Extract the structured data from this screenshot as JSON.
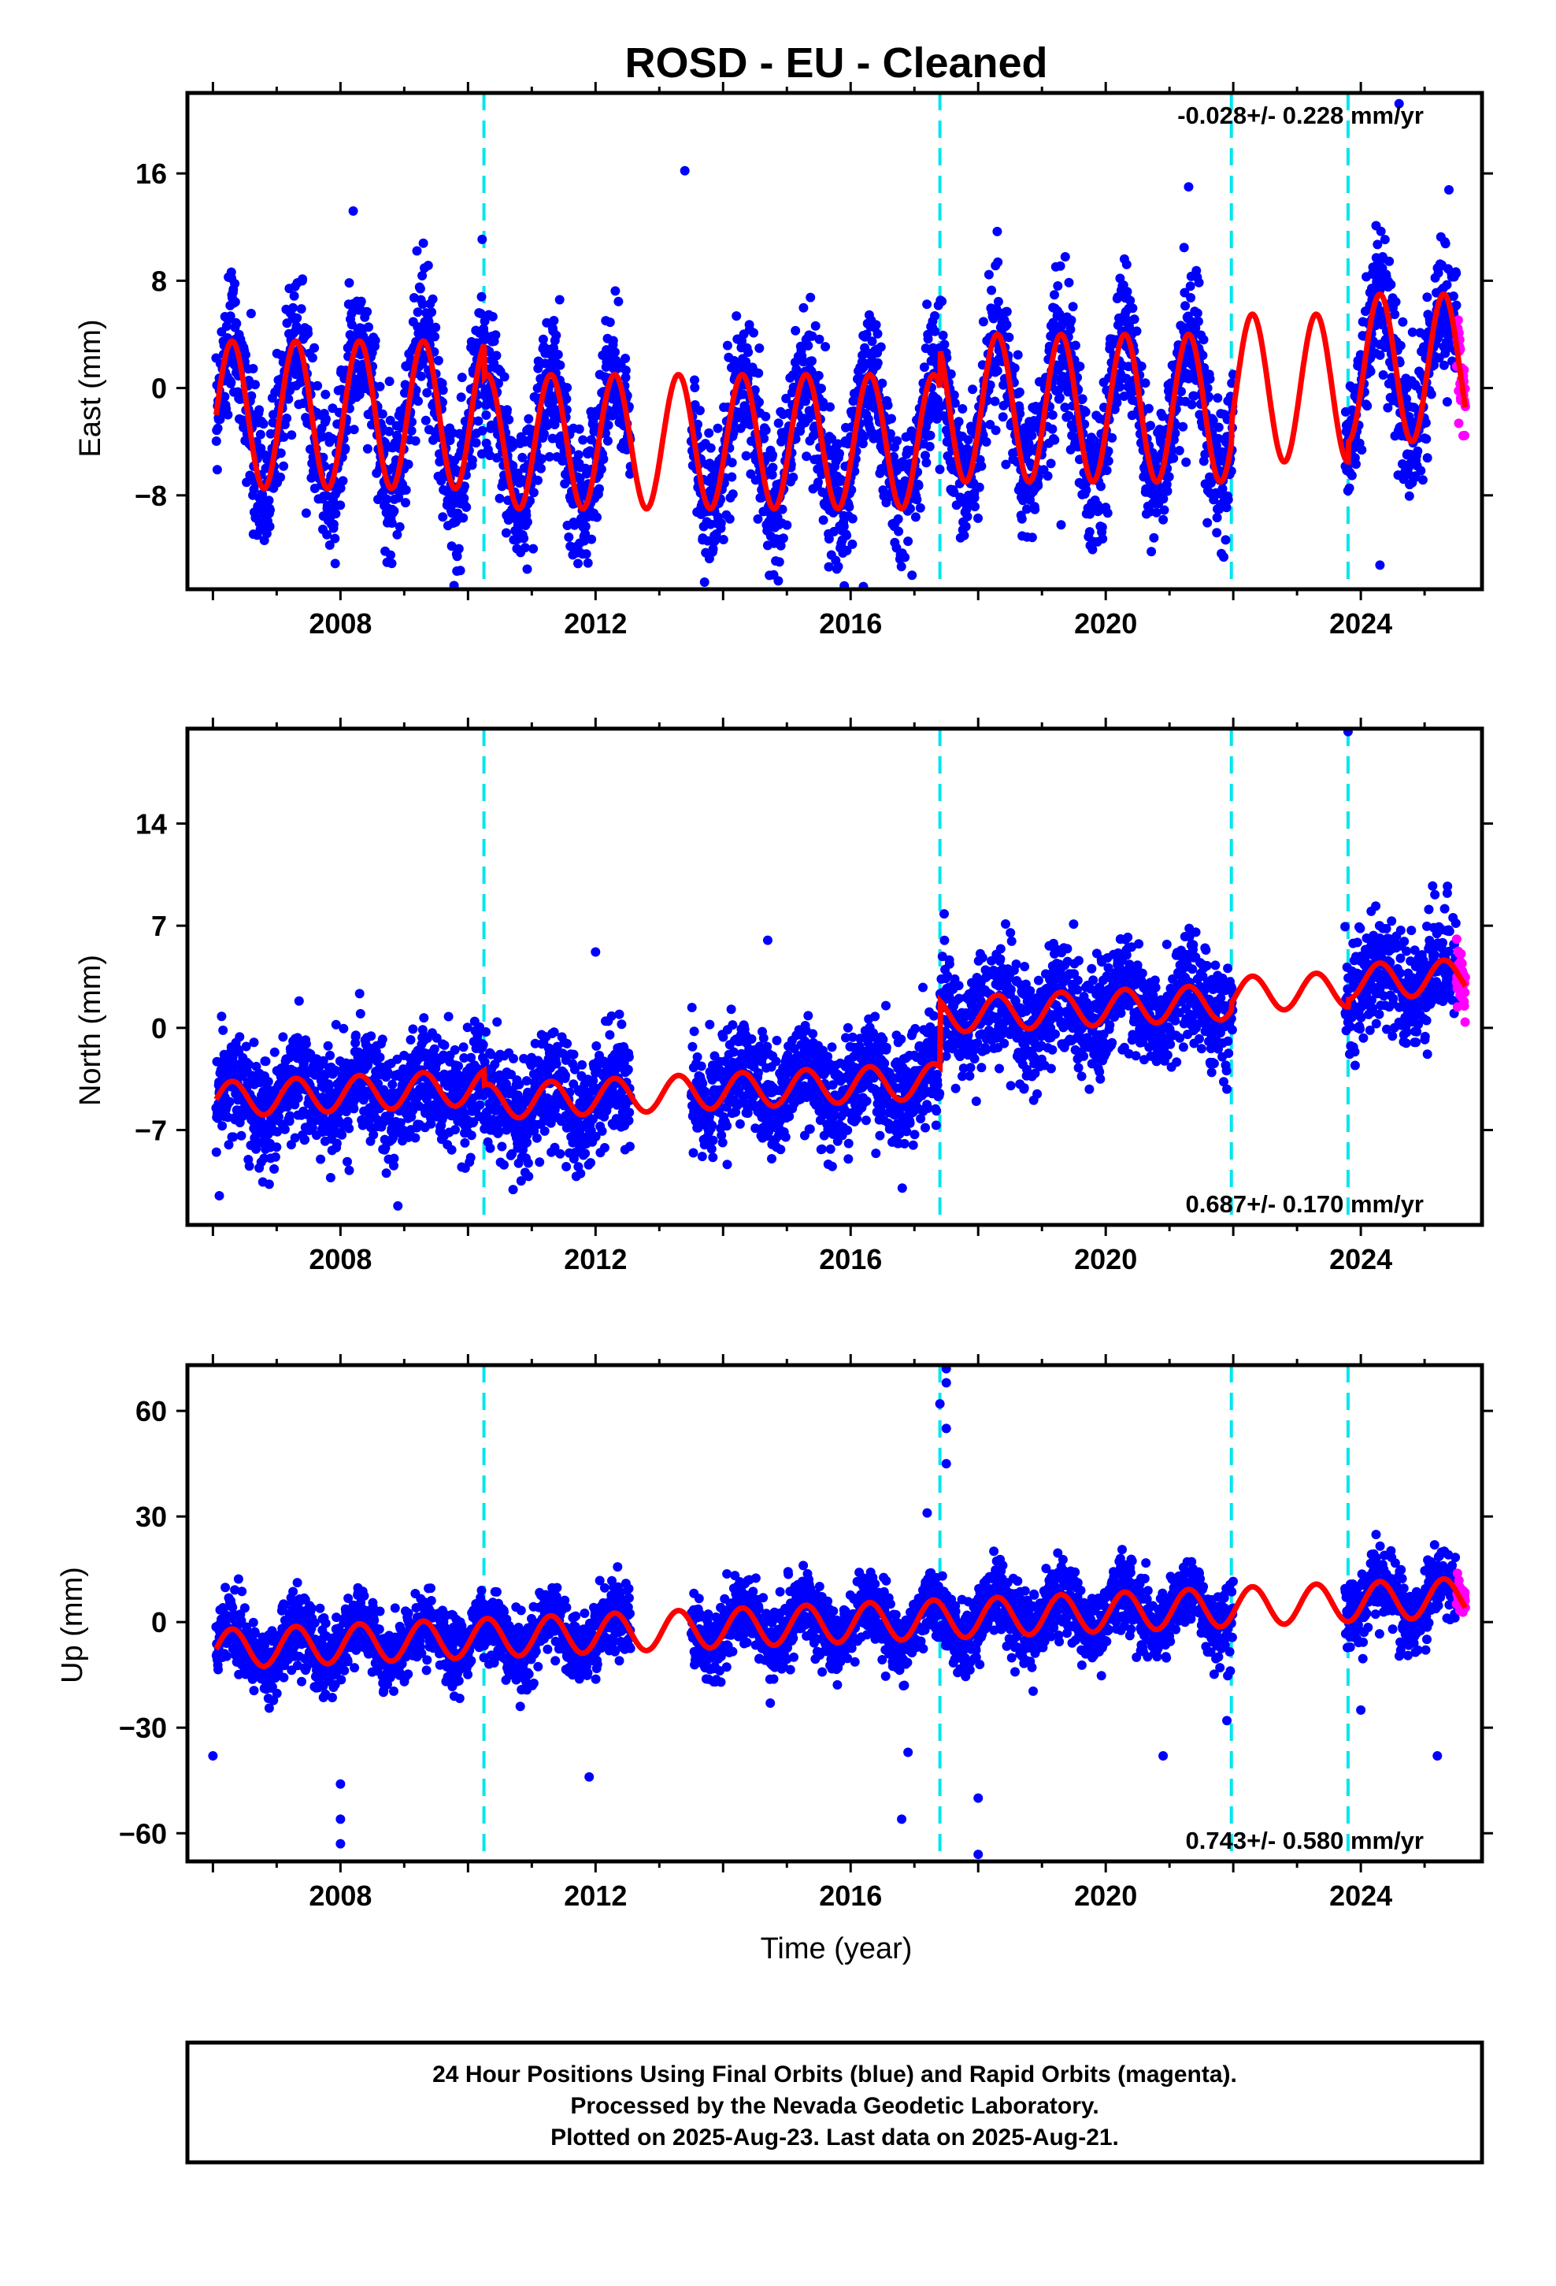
{
  "chart_data": {
    "type": "scatter",
    "title": "ROSD  - EU - Cleaned",
    "xlabel": "Time (year)",
    "xlim": [
      2005.6,
      2025.9
    ],
    "xticks": [
      2008,
      2012,
      2016,
      2020,
      2024
    ],
    "step_lines_year": [
      2010.25,
      2017.4,
      2021.97,
      2023.8
    ],
    "rapid_start_year": 2025.5,
    "colors": {
      "final": "#0000ff",
      "rapid": "#ff00ff",
      "model": "#ff0000",
      "steps": "#00e5ee"
    },
    "legend": [
      {
        "name": "Final Orbits",
        "color": "#0000ff"
      },
      {
        "name": "Rapid Orbits",
        "color": "#ff00ff"
      }
    ],
    "panels": [
      {
        "ylabel": "East (mm)",
        "ylim": [
          -15,
          22
        ],
        "yticks": [
          16,
          8,
          0,
          -8
        ],
        "rate_text": "-0.028+/- 0.228 mm/yr",
        "rate_position": "top-right",
        "model": {
          "offsets": [
            -2.0,
            2.5,
            1.5,
            1.5
          ],
          "amplitude_segments": [
            [
              2005.6,
              2010.25,
              5.5
            ],
            [
              2010.25,
              2017.4,
              5.0
            ],
            [
              2017.4,
              2025.9,
              5.5
            ]
          ],
          "base": -2.0,
          "trend": 0.0
        },
        "noise": 2.6,
        "gaps": [
          [
            2012.55,
            2013.5
          ],
          [
            2022.0,
            2023.75
          ]
        ],
        "outliers": [
          [
            2013.4,
            16.2
          ],
          [
            2016.2,
            -14.8
          ],
          [
            2019.3,
            -10.2
          ],
          [
            2024.3,
            -13.2
          ],
          [
            2024.6,
            21.2
          ],
          [
            2021.3,
            15.0
          ],
          [
            2008.2,
            13.2
          ]
        ]
      },
      {
        "ylabel": "North (mm)",
        "ylim": [
          -13.5,
          20.5
        ],
        "yticks": [
          14,
          7,
          0,
          -7
        ],
        "rate_text": "0.687+/- 0.170 mm/yr",
        "rate_position": "bottom-right",
        "model": {
          "offsets": [
            -1.0,
            4.5,
            0.5,
            0.5
          ],
          "amplitude_segments": [
            [
              2005.6,
              2025.9,
              1.2
            ]
          ],
          "base": -5.0,
          "trend": 0.2
        },
        "noise": 1.9,
        "gaps": [
          [
            2012.55,
            2013.5
          ],
          [
            2022.0,
            2023.75
          ]
        ],
        "outliers": [
          [
            2006.1,
            -11.5
          ],
          [
            2008.9,
            -12.2
          ],
          [
            2012.0,
            5.2
          ],
          [
            2023.8,
            20.3
          ],
          [
            2024.4,
            3.5
          ],
          [
            2021.9,
            -4.2
          ],
          [
            2014.7,
            6.0
          ]
        ]
      },
      {
        "ylabel": "Up (mm)",
        "ylim": [
          -68,
          73
        ],
        "yticks": [
          60,
          30,
          0,
          -30,
          -60
        ],
        "rate_text": "0.743+/- 0.580 mm/yr",
        "rate_position": "bottom-right",
        "model": {
          "offsets": [
            0.0,
            0.0,
            0.0,
            0.0
          ],
          "amplitude_segments": [
            [
              2005.6,
              2025.9,
              5.5
            ]
          ],
          "base": -8.0,
          "trend": 0.75
        },
        "noise": 5.0,
        "gaps": [
          [
            2012.55,
            2013.5
          ],
          [
            2022.0,
            2023.75
          ]
        ],
        "outliers": [
          [
            2017.5,
            72
          ],
          [
            2017.5,
            68
          ],
          [
            2017.4,
            62
          ],
          [
            2017.5,
            55
          ],
          [
            2017.2,
            31
          ],
          [
            2017.5,
            45
          ],
          [
            2008.0,
            -46
          ],
          [
            2008.0,
            -56
          ],
          [
            2008.0,
            -63
          ],
          [
            2018.0,
            -66
          ],
          [
            2018.0,
            -50
          ],
          [
            2016.8,
            -56
          ],
          [
            2016.9,
            -37
          ],
          [
            2006.0,
            -38
          ],
          [
            2011.9,
            -44
          ],
          [
            2021.9,
            -28
          ],
          [
            2025.2,
            -38
          ],
          [
            2020.9,
            -38
          ],
          [
            2024.0,
            -25
          ]
        ]
      }
    ],
    "footer": [
      "24 Hour Positions Using Final Orbits (blue) and Rapid Orbits (magenta).",
      "Processed by the Nevada Geodetic Laboratory.",
      "Plotted on 2025-Aug-23. Last data on 2025-Aug-21."
    ]
  }
}
